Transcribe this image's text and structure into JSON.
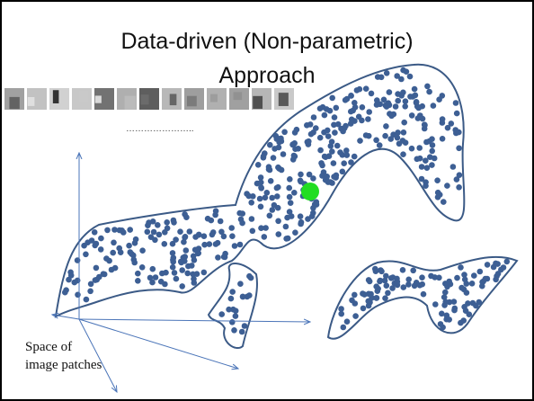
{
  "title_lines": [
    "Data-driven (Non-parametric)",
    "Approach"
  ],
  "separator": "…………………..",
  "caption_lines": [
    "Space of",
    "image patches"
  ]
}
